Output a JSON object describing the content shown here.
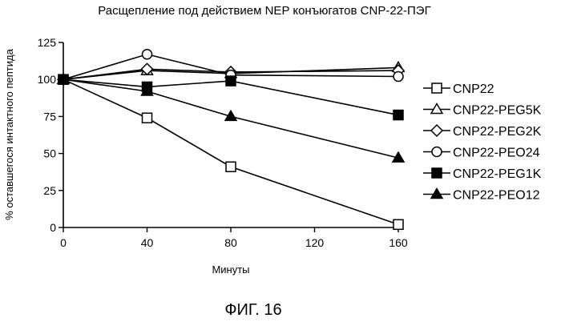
{
  "chart_data": {
    "type": "line",
    "title": "Расщепление под действием NEP конъюгатов CNP-22-ПЭГ",
    "xlabel": "Минуты",
    "ylabel": "% оставшегося интактного пептида",
    "xlim": [
      0,
      160
    ],
    "ylim": [
      0,
      125
    ],
    "xticks": [
      0,
      40,
      80,
      120,
      160
    ],
    "yticks": [
      0,
      25,
      50,
      75,
      100,
      125
    ],
    "grid": false,
    "legend_position": "right",
    "x": [
      0,
      40,
      80,
      160
    ],
    "series": [
      {
        "name": "CNP22",
        "marker": "square-open",
        "values": [
          100,
          74,
          41,
          2
        ]
      },
      {
        "name": "CNP22-PEG5K",
        "marker": "triangle-open",
        "values": [
          100,
          106,
          104,
          108
        ]
      },
      {
        "name": "CNP22-PEG2K",
        "marker": "diamond-open",
        "values": [
          100,
          107,
          105,
          106
        ]
      },
      {
        "name": "CNP22-PEO24",
        "marker": "circle-open",
        "values": [
          100,
          117,
          103,
          102
        ]
      },
      {
        "name": "CNP22-PEG1K",
        "marker": "square-filled",
        "values": [
          100,
          95,
          99,
          76
        ]
      },
      {
        "name": "CNP22-PEO12",
        "marker": "triangle-filled",
        "values": [
          100,
          92,
          75,
          47
        ]
      }
    ]
  },
  "caption": "ФИГ. 16"
}
